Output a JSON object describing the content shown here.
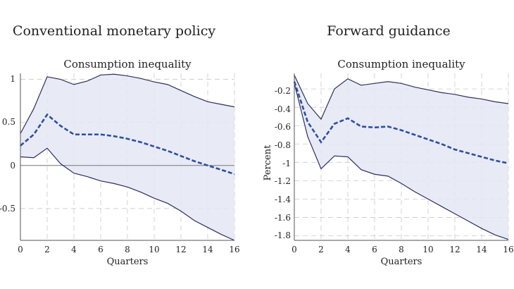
{
  "figure": {
    "panels": [
      {
        "heading": "Conventional monetary policy",
        "chart_title": "Consumption inequality",
        "x_label": "Quarters",
        "y_label": "",
        "x_ticks": [
          "0",
          "2",
          "4",
          "6",
          "8",
          "10",
          "12",
          "14",
          "16"
        ],
        "y_ticks": [
          "1",
          "0.5",
          "0",
          "-0.5"
        ]
      },
      {
        "heading": "Forward guidance",
        "chart_title": "Consumption inequality",
        "x_label": "Quarters",
        "y_label": "Percent",
        "x_ticks": [
          "0",
          "2",
          "4",
          "6",
          "8",
          "10",
          "12",
          "14",
          "16"
        ],
        "y_ticks": [
          "-0.2",
          "-0.4",
          "-0.6",
          "-0.8",
          "-1",
          "-1.2",
          "-1.4",
          "-1.6",
          "-1.8"
        ]
      }
    ]
  },
  "chart_data": [
    {
      "type": "area",
      "title": "Consumption inequality",
      "heading": "Conventional monetary policy",
      "xlabel": "Quarters",
      "ylabel": "",
      "xlim": [
        0,
        16
      ],
      "ylim": [
        -0.87,
        1.07
      ],
      "x": [
        0,
        1,
        2,
        3,
        4,
        5,
        6,
        7,
        8,
        9,
        10,
        11,
        12,
        13,
        14,
        15,
        16
      ],
      "series": [
        {
          "role": "median",
          "style": "dashed",
          "values": [
            0.23,
            0.36,
            0.59,
            0.46,
            0.36,
            0.36,
            0.36,
            0.34,
            0.31,
            0.27,
            0.22,
            0.17,
            0.11,
            0.05,
            0.0,
            -0.05,
            -0.1
          ]
        },
        {
          "role": "upper",
          "style": "solid",
          "values": [
            0.37,
            0.66,
            1.03,
            1.0,
            0.94,
            0.98,
            1.05,
            1.06,
            1.04,
            1.01,
            0.97,
            0.94,
            0.87,
            0.8,
            0.74,
            0.71,
            0.68
          ]
        },
        {
          "role": "lower",
          "style": "solid",
          "values": [
            0.1,
            0.09,
            0.2,
            0.02,
            -0.09,
            -0.13,
            -0.18,
            -0.21,
            -0.25,
            -0.31,
            -0.38,
            -0.44,
            -0.53,
            -0.64,
            -0.72,
            -0.8,
            -0.87
          ]
        }
      ],
      "zero_line": true,
      "grid": true,
      "colors": {
        "band": "#e4e7f4",
        "median": "#2d4ea1",
        "bounds": "#2b2f5c",
        "grid": "#c9c9c9",
        "zero": "#777777"
      }
    },
    {
      "type": "area",
      "title": "Consumption inequality",
      "heading": "Forward guidance",
      "xlabel": "Quarters",
      "ylabel": "Percent",
      "xlim": [
        0,
        16
      ],
      "ylim": [
        -1.85,
        -0.03
      ],
      "x": [
        0,
        1,
        2,
        3,
        4,
        5,
        6,
        7,
        8,
        9,
        10,
        11,
        12,
        13,
        14,
        15,
        16
      ],
      "series": [
        {
          "role": "median",
          "style": "dashed",
          "values": [
            -0.12,
            -0.56,
            -0.78,
            -0.58,
            -0.52,
            -0.61,
            -0.62,
            -0.61,
            -0.65,
            -0.7,
            -0.75,
            -0.8,
            -0.86,
            -0.9,
            -0.94,
            -0.98,
            -1.01
          ]
        },
        {
          "role": "upper",
          "style": "solid",
          "values": [
            -0.05,
            -0.36,
            -0.53,
            -0.2,
            -0.09,
            -0.16,
            -0.14,
            -0.12,
            -0.14,
            -0.18,
            -0.21,
            -0.24,
            -0.26,
            -0.29,
            -0.31,
            -0.34,
            -0.36
          ]
        },
        {
          "role": "lower",
          "style": "solid",
          "values": [
            -0.14,
            -0.72,
            -1.07,
            -0.93,
            -0.94,
            -1.08,
            -1.13,
            -1.15,
            -1.23,
            -1.32,
            -1.4,
            -1.48,
            -1.56,
            -1.64,
            -1.72,
            -1.79,
            -1.84
          ]
        }
      ],
      "zero_line": false,
      "grid": true,
      "colors": {
        "band": "#e4e7f4",
        "median": "#2d4ea1",
        "bounds": "#2b2f5c",
        "grid": "#c9c9c9",
        "zero": "#777777"
      }
    }
  ]
}
